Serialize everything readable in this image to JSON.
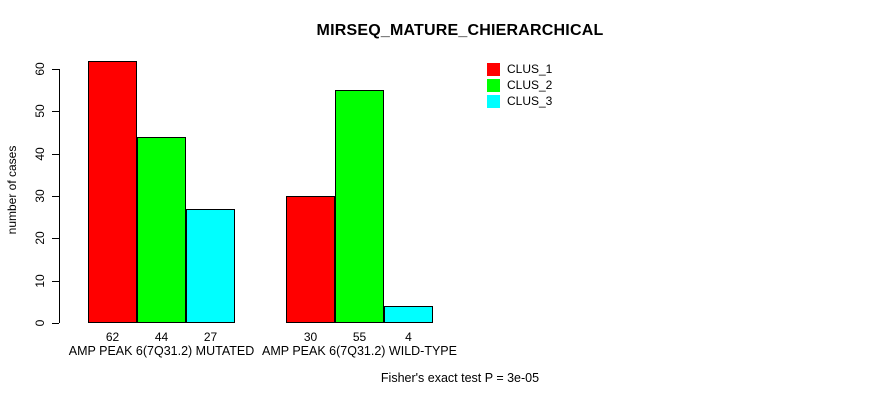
{
  "chart_data": {
    "type": "bar",
    "title": "MIRSEQ_MATURE_CHIERARCHICAL",
    "ylabel": "number of cases",
    "xlabel": "",
    "categories": [
      "AMP PEAK 6(7Q31.2) MUTATED",
      "AMP PEAK 6(7Q31.2) WILD-TYPE"
    ],
    "series": [
      {
        "name": "CLUS_1",
        "color": "#ff0000",
        "values": [
          62,
          30
        ]
      },
      {
        "name": "CLUS_2",
        "color": "#00ff00",
        "values": [
          44,
          55
        ]
      },
      {
        "name": "CLUS_3",
        "color": "#00ffff",
        "values": [
          27,
          4
        ]
      }
    ],
    "y_ticks": [
      0,
      10,
      20,
      30,
      40,
      50,
      60
    ],
    "ylim": [
      0,
      62
    ],
    "grid": false,
    "legend_position": "top-right",
    "bar_value_labels": true,
    "annotation": "Fisher's exact test P = 3e-05"
  }
}
